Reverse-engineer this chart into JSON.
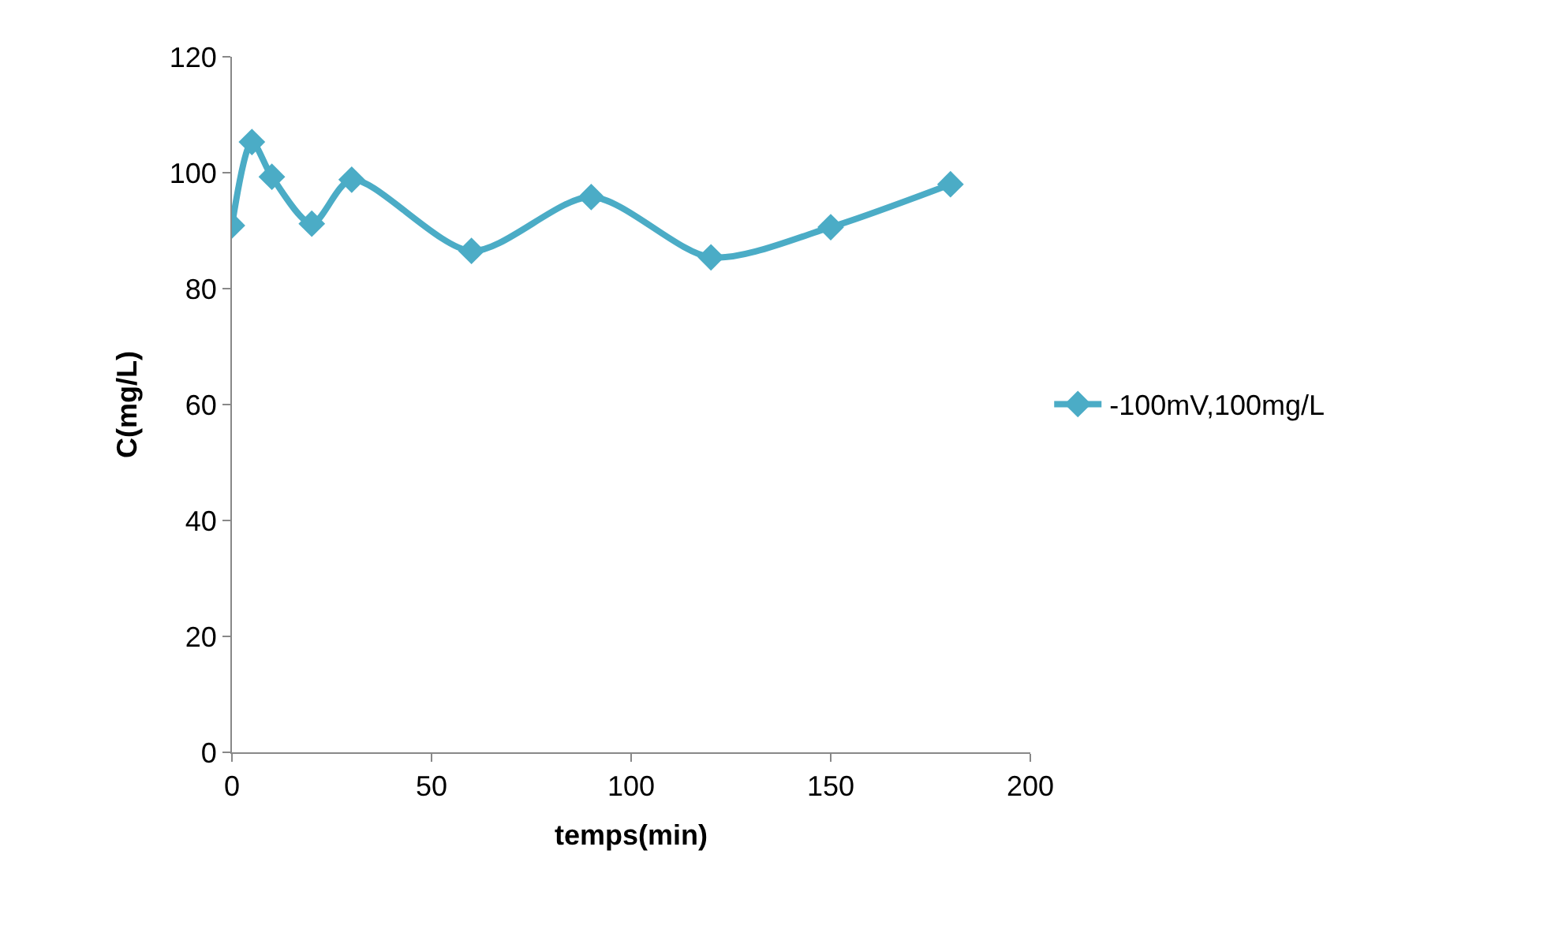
{
  "chart_data": {
    "type": "line",
    "xlabel": "temps(min)",
    "ylabel": "C(mg/L)",
    "x": [
      0,
      5,
      10,
      20,
      30,
      60,
      90,
      120,
      150,
      180
    ],
    "series": [
      {
        "name": "-100mV,100mg/L",
        "color": "#4bacc6",
        "values": [
          90.9,
          105.3,
          99.3,
          91.2,
          98.8,
          86.5,
          95.8,
          85.4,
          90.6,
          98.0
        ]
      }
    ],
    "xlim": [
      0,
      200
    ],
    "xticks": [
      0,
      50,
      100,
      150,
      200
    ],
    "ylim": [
      0,
      120
    ],
    "yticks": [
      0,
      20,
      40,
      60,
      80,
      100,
      120
    ],
    "grid": false,
    "legend": "right",
    "marker": "diamond",
    "line_style": "solid"
  }
}
